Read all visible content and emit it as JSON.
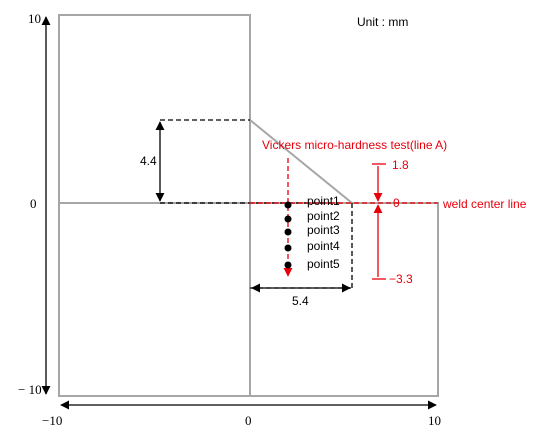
{
  "unit_label": "Unit : mm",
  "axis": {
    "y_top": "10",
    "y_zero": "0",
    "y_bottom": "− 10",
    "x_left": "−10",
    "x_zero": "0",
    "x_right": "10"
  },
  "dims": {
    "height_44": "4.4",
    "width_54": "5.4"
  },
  "test_label": "Vickers micro-hardness test(line A)",
  "weld_label": "weld center line",
  "red_dims": {
    "upper": "1.8",
    "zero": "0",
    "lower": "−3.3"
  },
  "points": [
    {
      "label": "point1"
    },
    {
      "label": "point2"
    },
    {
      "label": "point3"
    },
    {
      "label": "point4"
    },
    {
      "label": "point5"
    }
  ],
  "colors": {
    "red": "#e8000b",
    "gray": "#a6a6a6",
    "black": "#000000"
  }
}
